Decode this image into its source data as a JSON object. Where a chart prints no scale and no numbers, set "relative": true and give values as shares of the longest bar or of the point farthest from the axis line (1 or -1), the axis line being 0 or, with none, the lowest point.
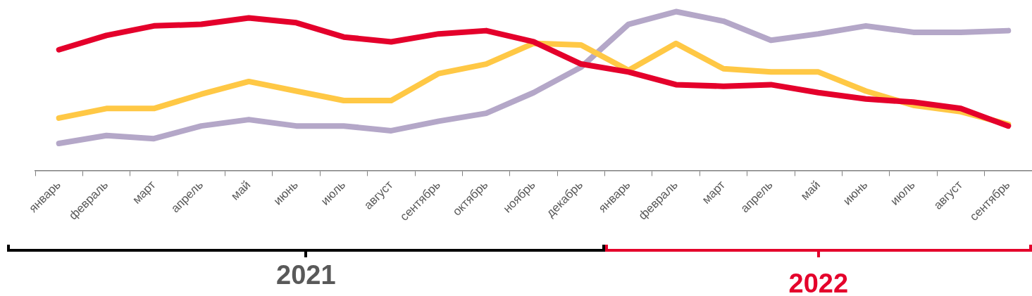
{
  "chart_data": {
    "type": "line",
    "relative": true,
    "grid": false,
    "legend": false,
    "marker": "none",
    "line_style": "solid",
    "categories": [
      "январь",
      "февраль",
      "март",
      "апрель",
      "май",
      "июнь",
      "июль",
      "август",
      "сентябрь",
      "октябрь",
      "ноябрь",
      "декабрь",
      "январь",
      "февраль",
      "март",
      "апрель",
      "май",
      "июнь",
      "июль",
      "август",
      "сентябрь"
    ],
    "series": [
      {
        "color": "#e4002b",
        "values": [
          0.76,
          0.85,
          0.91,
          0.92,
          0.96,
          0.93,
          0.84,
          0.81,
          0.86,
          0.88,
          0.81,
          0.67,
          0.62,
          0.54,
          0.53,
          0.54,
          0.49,
          0.45,
          0.43,
          0.39,
          0.28
        ]
      },
      {
        "color": "#ffc845",
        "values": [
          0.33,
          0.39,
          0.39,
          0.48,
          0.56,
          0.5,
          0.44,
          0.44,
          0.61,
          0.67,
          0.8,
          0.79,
          0.63,
          0.8,
          0.64,
          0.62,
          0.62,
          0.5,
          0.41,
          0.37,
          0.29
        ]
      },
      {
        "color": "#b4a7c8",
        "values": [
          0.17,
          0.22,
          0.2,
          0.28,
          0.32,
          0.28,
          0.28,
          0.25,
          0.31,
          0.36,
          0.49,
          0.65,
          0.92,
          1,
          0.94,
          0.82,
          0.86,
          0.91,
          0.87,
          0.87,
          0.88
        ]
      }
    ],
    "annotations": [
      "2021",
      "2022"
    ]
  }
}
